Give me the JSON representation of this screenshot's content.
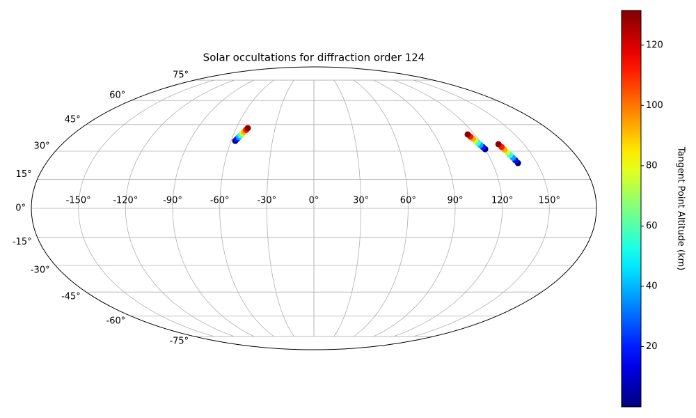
{
  "chart_data": {
    "type": "scatter",
    "projection": "mollweide",
    "title": "Solar occultations for diffraction order 124",
    "xlim": [
      -180,
      180
    ],
    "ylim": [
      -90,
      90
    ],
    "xticks": [
      {
        "value": -150,
        "label": "-150°"
      },
      {
        "value": -120,
        "label": "-120°"
      },
      {
        "value": -90,
        "label": "-90°"
      },
      {
        "value": -60,
        "label": "-60°"
      },
      {
        "value": -30,
        "label": "-30°"
      },
      {
        "value": 0,
        "label": "0°"
      },
      {
        "value": 30,
        "label": "30°"
      },
      {
        "value": 60,
        "label": "60°"
      },
      {
        "value": 90,
        "label": "90°"
      },
      {
        "value": 120,
        "label": "120°"
      },
      {
        "value": 150,
        "label": "150°"
      }
    ],
    "yticks": [
      {
        "value": -75,
        "label": "-75°"
      },
      {
        "value": -60,
        "label": "-60°"
      },
      {
        "value": -45,
        "label": "-45°"
      },
      {
        "value": -30,
        "label": "-30°"
      },
      {
        "value": -15,
        "label": "-15°"
      },
      {
        "value": 0,
        "label": "0°"
      },
      {
        "value": 15,
        "label": "15°"
      },
      {
        "value": 30,
        "label": "30°"
      },
      {
        "value": 45,
        "label": "45°"
      },
      {
        "value": 60,
        "label": "60°"
      },
      {
        "value": 75,
        "label": "75°"
      }
    ],
    "grid": true,
    "colorbar": {
      "label": "Tangent Point Altitude (km)",
      "cmap": "jet",
      "clim": [
        0,
        131.5
      ],
      "ticks": [
        20,
        40,
        60,
        80,
        100,
        120
      ]
    },
    "series": [
      {
        "x": [
          -57.0,
          -56.2,
          -55.3,
          -54.5,
          -53.6,
          -52.8,
          -51.9,
          -51.1
        ],
        "y": [
          35.7,
          36.7,
          37.8,
          38.8,
          39.8,
          40.8,
          41.9,
          42.9
        ],
        "c": [
          1,
          19,
          38,
          56,
          75,
          93,
          112,
          130
        ]
      },
      {
        "x": [
          120.1,
          119.4,
          118.6,
          117.9,
          117.1,
          116.4,
          115.6,
          114.9
        ],
        "y": [
          31.1,
          32.3,
          33.4,
          34.6,
          35.8,
          37.0,
          38.1,
          39.3
        ],
        "c": [
          1,
          19,
          38,
          56,
          75,
          93,
          112,
          130
        ]
      },
      {
        "x": [
          137.2,
          136.4,
          135.7,
          134.9,
          134.2,
          133.4,
          132.7,
          131.9
        ],
        "y": [
          23.6,
          25.1,
          26.5,
          28.0,
          29.4,
          30.9,
          32.3,
          33.8
        ],
        "c": [
          1,
          19,
          38,
          56,
          75,
          93,
          112,
          130
        ]
      }
    ]
  }
}
